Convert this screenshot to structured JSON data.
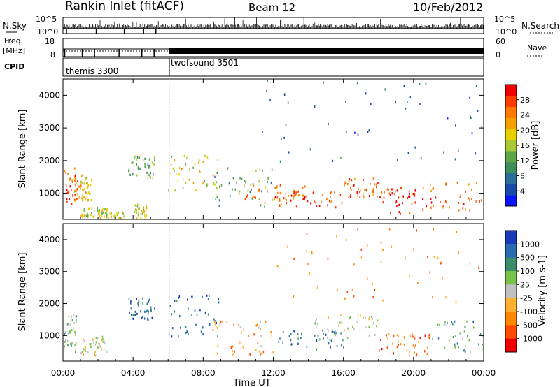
{
  "header": {
    "station": "Rankin Inlet (fitACF)",
    "beam": "Beam 12",
    "date": "10/Feb/2012"
  },
  "strip_panels": {
    "nsky": {
      "label": "N.Sky",
      "right_label": "N.Search",
      "left_ticks": [
        "10^5",
        "10^0"
      ],
      "right_ticks": [
        "10^5",
        "10^0"
      ]
    },
    "freq": {
      "label_line1": "Freq.",
      "label_line2": "[MHz]",
      "right_label": "Nave",
      "left_ticks": [
        "18",
        "8"
      ],
      "right_ticks": [
        "60",
        "0"
      ]
    },
    "cpid": {
      "label": "CPID",
      "modes": [
        {
          "name": "themis 3300",
          "start_hour": 0
        },
        {
          "name": "twofsound 3501",
          "start_hour": 6
        }
      ]
    }
  },
  "chart_data": [
    {
      "type": "heatmap",
      "name": "power",
      "ylabel": "Slant Range [km]",
      "xlabel": "Time UT",
      "x_ticks": [
        "00:00",
        "04:00",
        "08:00",
        "12:00",
        "16:00",
        "20:00",
        "00:00"
      ],
      "x_range_hours": [
        0,
        24
      ],
      "y_ticks": [
        1000,
        2000,
        3000,
        4000
      ],
      "ylim": [
        200,
        4500
      ],
      "colorbar": {
        "label": "Power [dB]",
        "ticks": [
          "4",
          "8",
          "12",
          "16",
          "20",
          "24",
          "28"
        ],
        "colors": [
          "#0a14ff",
          "#1a4aa8",
          "#2b6e9a",
          "#3e8d5a",
          "#5fa64a",
          "#a8c83a",
          "#e7d000",
          "#f4a000",
          "#ff7a00",
          "#ff3c00",
          "#f00000"
        ]
      },
      "features": [
        {
          "t0": 0.0,
          "t1": 0.8,
          "r0": 600,
          "r1": 1800,
          "level": 0.85
        },
        {
          "t0": 0.8,
          "t1": 1.6,
          "r0": 800,
          "r1": 1600,
          "level": 0.6
        },
        {
          "t0": 1.0,
          "t1": 2.5,
          "r0": 300,
          "r1": 600,
          "level": 0.5
        },
        {
          "t0": 2.0,
          "t1": 3.5,
          "r0": 200,
          "r1": 450,
          "level": 0.55
        },
        {
          "t0": 3.7,
          "t1": 5.2,
          "r0": 1500,
          "r1": 2200,
          "level": 0.4
        },
        {
          "t0": 4.0,
          "t1": 4.8,
          "r0": 200,
          "r1": 700,
          "level": 0.55
        },
        {
          "t0": 6.0,
          "t1": 9.0,
          "r0": 1100,
          "r1": 2300,
          "level": 0.6
        },
        {
          "t0": 8.5,
          "t1": 12.0,
          "r0": 600,
          "r1": 1800,
          "level": 0.35
        },
        {
          "t0": 10.0,
          "t1": 14.0,
          "r0": 700,
          "r1": 1300,
          "level": 0.8
        },
        {
          "t0": 12.0,
          "t1": 16.0,
          "r0": 600,
          "r1": 1100,
          "level": 0.9
        },
        {
          "t0": 16.0,
          "t1": 18.0,
          "r0": 900,
          "r1": 1500,
          "level": 0.85
        },
        {
          "t0": 18.0,
          "t1": 20.5,
          "r0": 400,
          "r1": 1200,
          "level": 0.95
        },
        {
          "t0": 20.5,
          "t1": 24.0,
          "r0": 500,
          "r1": 1400,
          "level": 0.85
        },
        {
          "t0": 11.0,
          "t1": 24.0,
          "r0": 2000,
          "r1": 4500,
          "level": 0.2
        }
      ]
    },
    {
      "type": "heatmap",
      "name": "velocity",
      "ylabel": "Slant Range [km]",
      "xlabel": "Time UT",
      "x_ticks": [
        "00:00",
        "04:00",
        "08:00",
        "12:00",
        "16:00",
        "20:00",
        "00:00"
      ],
      "x_range_hours": [
        0,
        24
      ],
      "y_ticks": [
        1000,
        2000,
        3000,
        4000
      ],
      "ylim": [
        200,
        4500
      ],
      "colorbar": {
        "label": "Velocity [m s-1]",
        "ticks": [
          "1000",
          "500",
          "100",
          "25",
          "-25",
          "-100",
          "-500",
          "-1000"
        ],
        "colors": [
          "#1a3ab8",
          "#2a6ab0",
          "#3e8d6a",
          "#7ac34a",
          "#c0c0c0",
          "#ffb030",
          "#ff8a00",
          "#ff4a00",
          "#ee0000"
        ]
      },
      "features": [
        {
          "t0": 0.0,
          "t1": 0.8,
          "r0": 500,
          "r1": 1700,
          "level": 0.35
        },
        {
          "t0": 1.0,
          "t1": 2.5,
          "r0": 400,
          "r1": 1000,
          "level": 0.5
        },
        {
          "t0": 3.7,
          "t1": 5.2,
          "r0": 1500,
          "r1": 2200,
          "level": 0.1
        },
        {
          "t0": 6.0,
          "t1": 9.0,
          "r0": 1000,
          "r1": 2300,
          "level": 0.08
        },
        {
          "t0": 8.5,
          "t1": 12.0,
          "r0": 400,
          "r1": 1500,
          "level": 0.7
        },
        {
          "t0": 12.0,
          "t1": 16.0,
          "r0": 600,
          "r1": 1200,
          "level": 0.15
        },
        {
          "t0": 14.0,
          "t1": 18.0,
          "r0": 900,
          "r1": 1700,
          "level": 0.5
        },
        {
          "t0": 18.0,
          "t1": 21.0,
          "r0": 400,
          "r1": 1100,
          "level": 0.8
        },
        {
          "t0": 21.0,
          "t1": 24.0,
          "r0": 500,
          "r1": 1500,
          "level": 0.3
        },
        {
          "t0": 12.0,
          "t1": 24.0,
          "r0": 2000,
          "r1": 4500,
          "level": 0.75
        }
      ]
    }
  ]
}
